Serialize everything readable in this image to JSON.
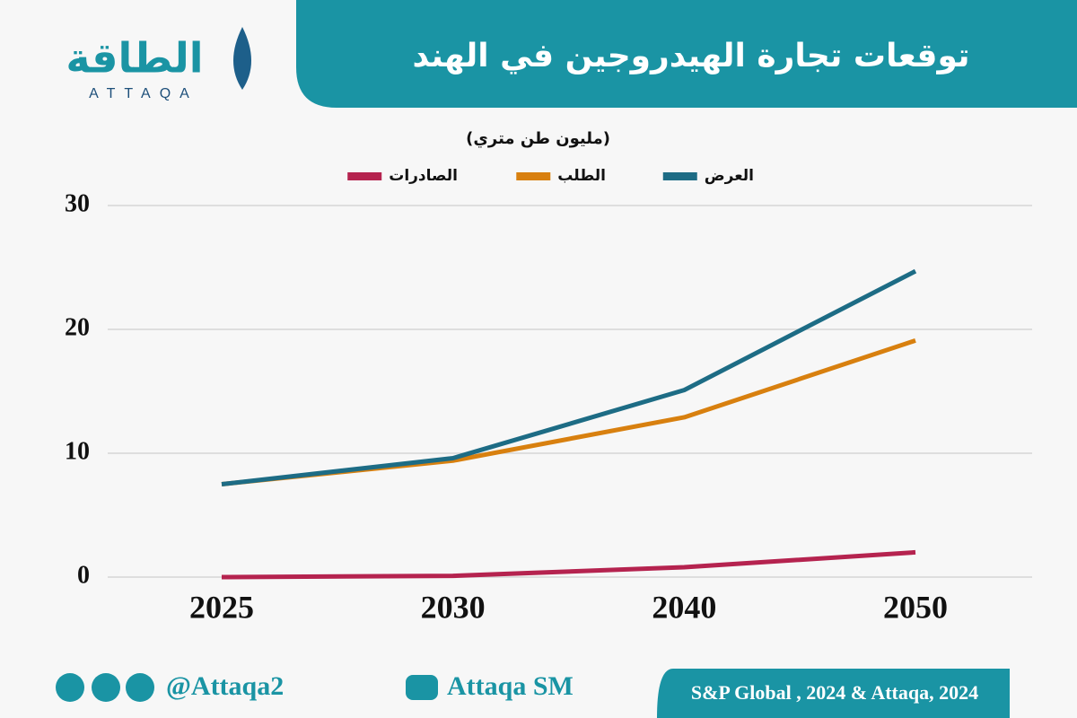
{
  "logo": {
    "name": "الطاقة",
    "latin": "ATTAQA"
  },
  "chart_data": {
    "type": "line",
    "title": "توقعات تجارة الهيدروجين في الهند",
    "subtitle": "(مليون طن متري)",
    "categories": [
      "2025",
      "2030",
      "2040",
      "2050"
    ],
    "series": [
      {
        "name": "العرض",
        "color": "#1d6c85",
        "values": [
          7.5,
          9.6,
          15.1,
          24.7
        ]
      },
      {
        "name": "الطلب",
        "color": "#d8800f",
        "values": [
          7.5,
          9.4,
          12.9,
          19.1
        ]
      },
      {
        "name": "الصادرات",
        "color": "#b5234f",
        "values": [
          0,
          0.1,
          0.8,
          2.0
        ]
      }
    ],
    "ylim": [
      0,
      30
    ],
    "yticks": [
      0,
      10,
      20,
      30
    ],
    "grid": true
  },
  "footer": {
    "handle": "@Attaqa2",
    "channel": "Attaqa SM",
    "source": "S&P Global , 2024 & Attaqa, 2024"
  }
}
